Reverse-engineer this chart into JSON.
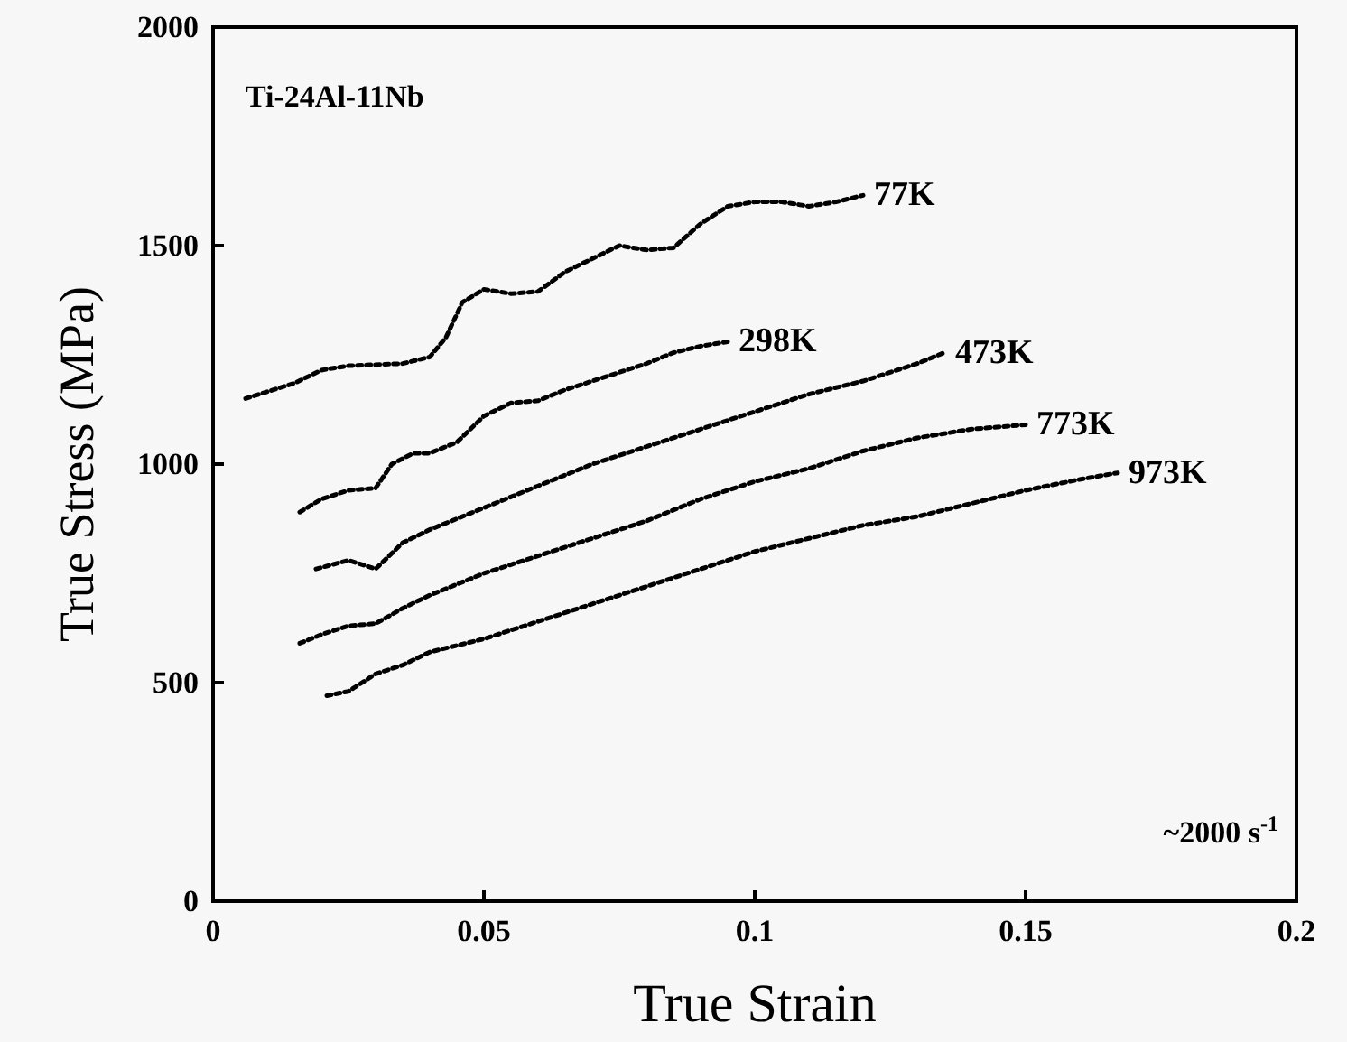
{
  "chart_data": {
    "type": "line",
    "xlabel": "True Strain",
    "ylabel": "True Stress (MPa)",
    "xlim": [
      0,
      0.2
    ],
    "xticks": [
      0,
      0.05,
      0.1,
      0.15,
      0.2
    ],
    "ylim": [
      0,
      2000
    ],
    "yticks": [
      0,
      500,
      1000,
      1500,
      2000
    ],
    "line_style": "dotted",
    "grid": false,
    "annotations": [
      "Ti-24Al-11Nb",
      "~2000 s$^{-1}$"
    ],
    "series": [
      {
        "name": "77K",
        "color": "#000000",
        "x": [
          0.006,
          0.015,
          0.02,
          0.025,
          0.035,
          0.04,
          0.043,
          0.046,
          0.05,
          0.055,
          0.06,
          0.065,
          0.07,
          0.075,
          0.08,
          0.085,
          0.09,
          0.095,
          0.1,
          0.105,
          0.11,
          0.115,
          0.12
        ],
        "values": [
          1150,
          1185,
          1215,
          1225,
          1230,
          1245,
          1290,
          1370,
          1400,
          1390,
          1395,
          1440,
          1470,
          1500,
          1490,
          1495,
          1550,
          1590,
          1600,
          1600,
          1590,
          1600,
          1615
        ]
      },
      {
        "name": "298K",
        "color": "#000000",
        "x": [
          0.016,
          0.02,
          0.025,
          0.03,
          0.033,
          0.037,
          0.04,
          0.045,
          0.05,
          0.055,
          0.06,
          0.065,
          0.07,
          0.075,
          0.08,
          0.085,
          0.09,
          0.095
        ],
        "values": [
          890,
          920,
          940,
          945,
          1000,
          1025,
          1025,
          1050,
          1110,
          1140,
          1145,
          1170,
          1190,
          1210,
          1230,
          1255,
          1270,
          1280
        ]
      },
      {
        "name": "473K",
        "color": "#000000",
        "x": [
          0.019,
          0.025,
          0.03,
          0.035,
          0.04,
          0.05,
          0.06,
          0.07,
          0.08,
          0.09,
          0.1,
          0.11,
          0.12,
          0.13,
          0.135
        ],
        "values": [
          760,
          780,
          760,
          820,
          850,
          900,
          950,
          1000,
          1040,
          1080,
          1120,
          1160,
          1190,
          1230,
          1255
        ]
      },
      {
        "name": "773K",
        "color": "#000000",
        "x": [
          0.016,
          0.02,
          0.025,
          0.03,
          0.035,
          0.04,
          0.05,
          0.06,
          0.07,
          0.08,
          0.09,
          0.1,
          0.11,
          0.12,
          0.13,
          0.14,
          0.15
        ],
        "values": [
          590,
          610,
          630,
          635,
          670,
          700,
          750,
          790,
          830,
          870,
          920,
          960,
          990,
          1030,
          1060,
          1080,
          1090
        ]
      },
      {
        "name": "973K",
        "color": "#000000",
        "x": [
          0.021,
          0.025,
          0.03,
          0.035,
          0.04,
          0.05,
          0.06,
          0.07,
          0.08,
          0.09,
          0.1,
          0.11,
          0.12,
          0.13,
          0.14,
          0.15,
          0.16,
          0.167
        ],
        "values": [
          470,
          480,
          520,
          540,
          570,
          600,
          640,
          680,
          720,
          760,
          800,
          830,
          860,
          880,
          910,
          940,
          965,
          980
        ]
      }
    ]
  }
}
